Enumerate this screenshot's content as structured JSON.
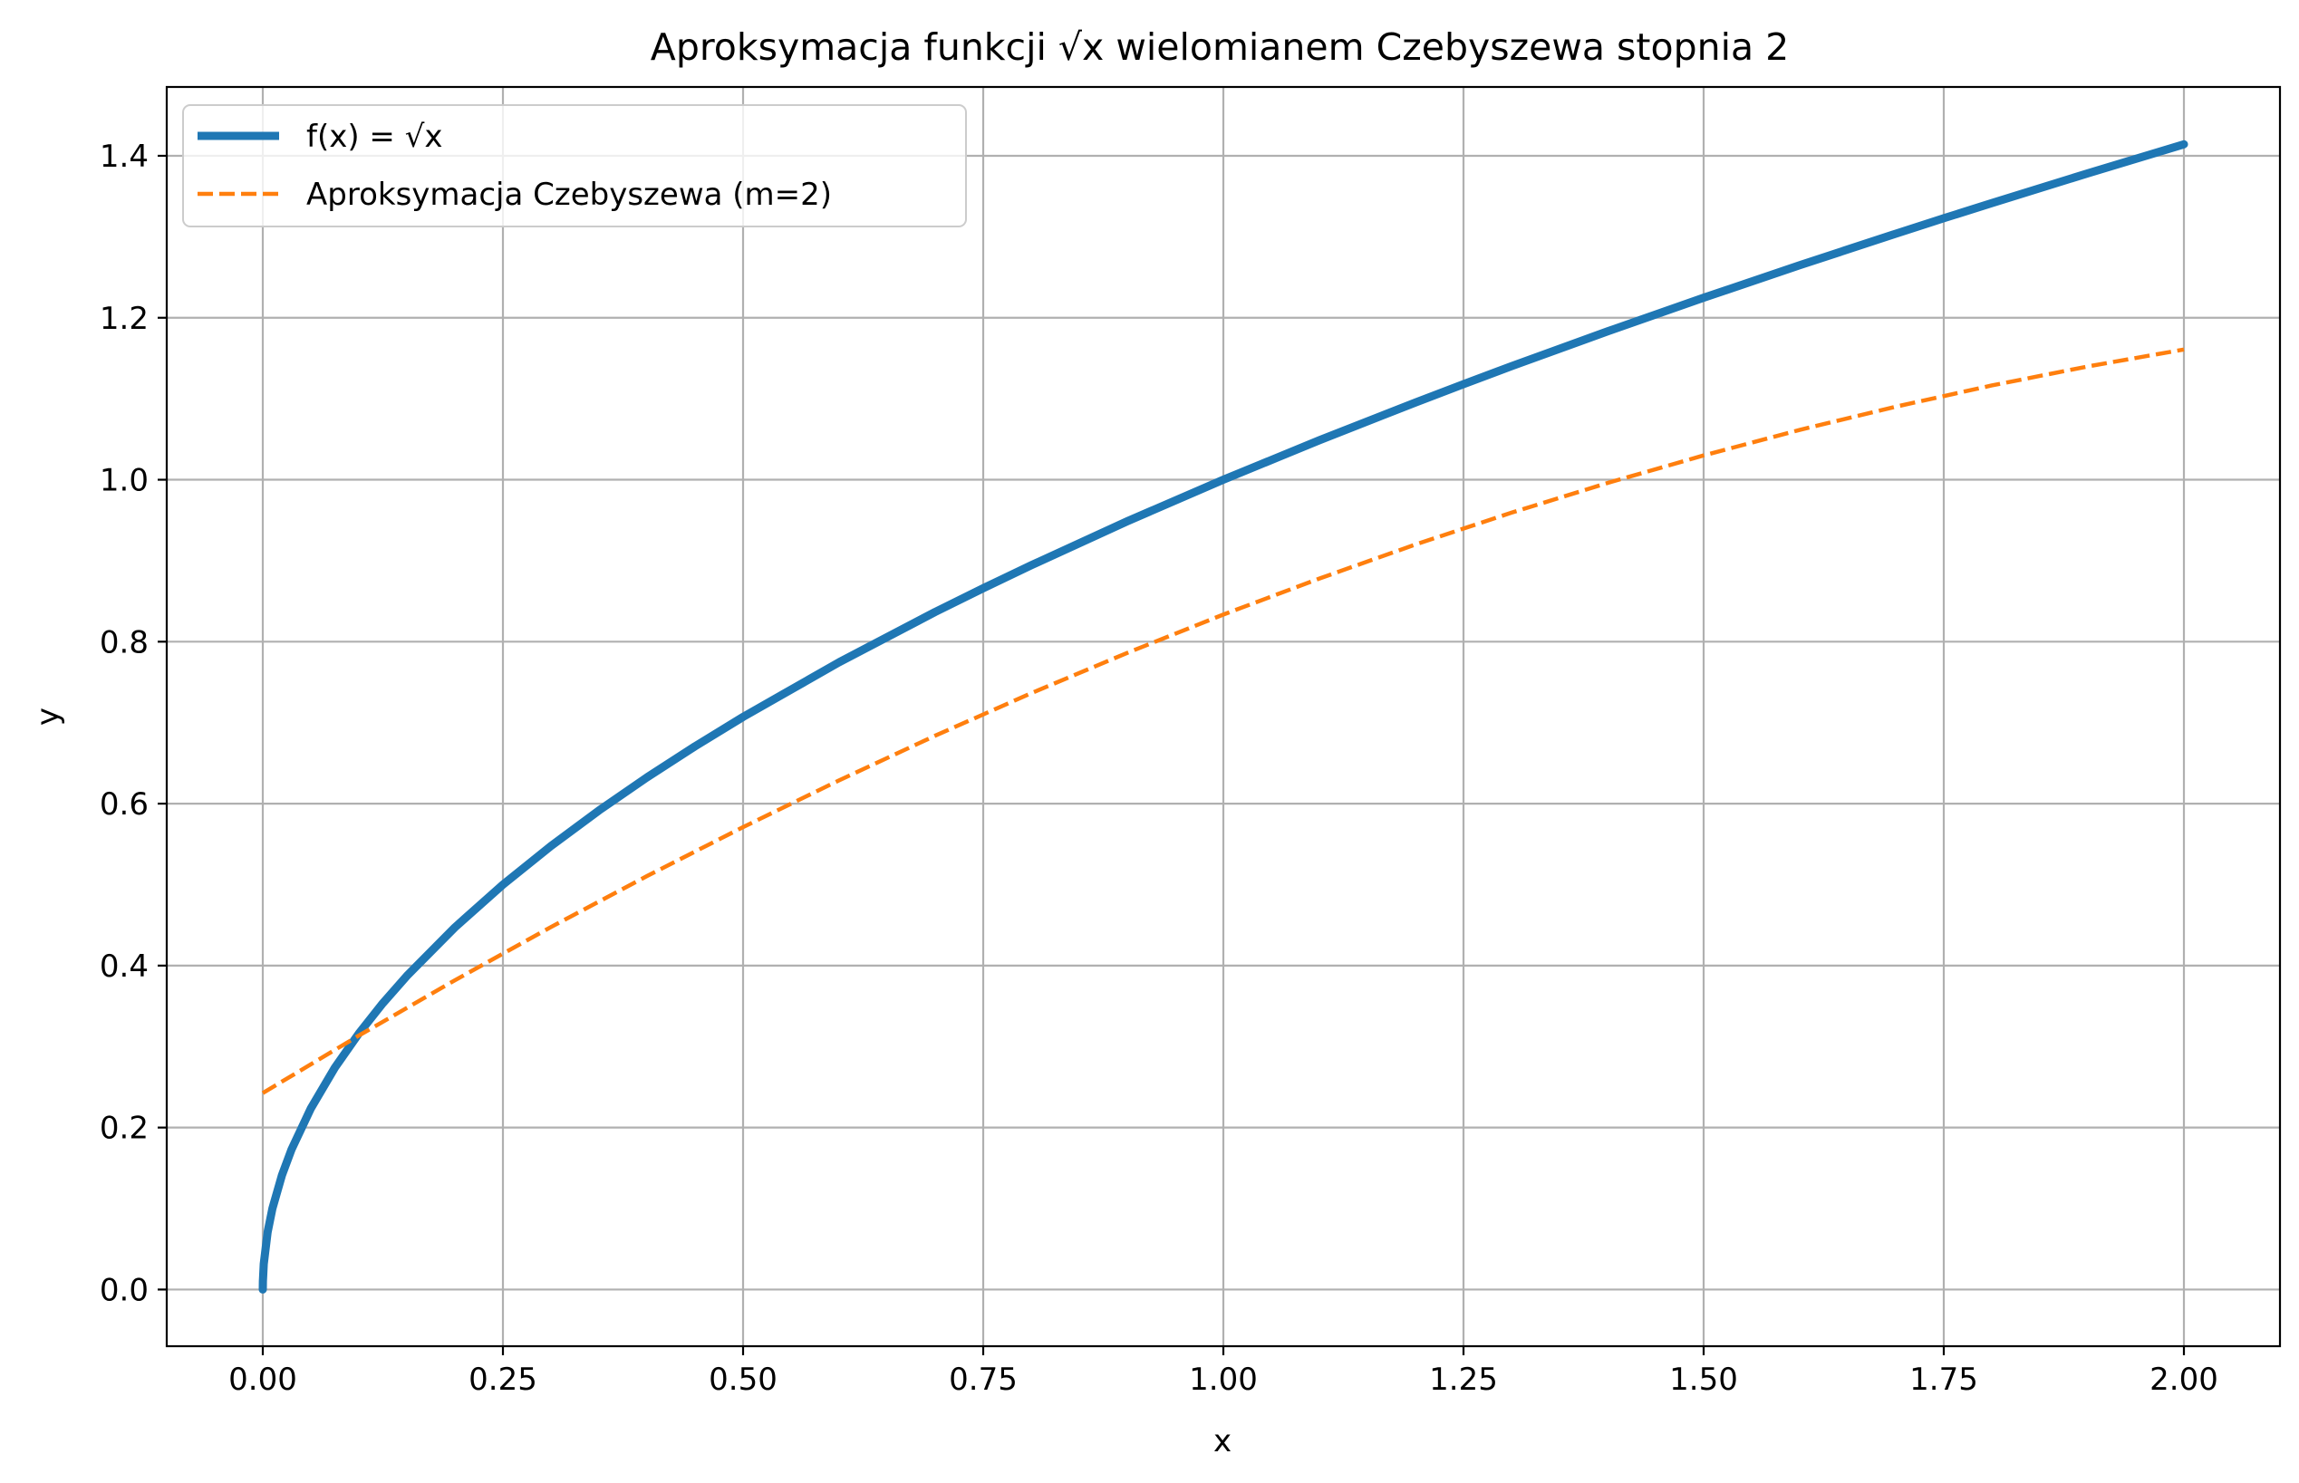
{
  "chart_data": {
    "type": "line",
    "title": "Aproksymacja funkcji √x wielomianem Czebyszewa stopnia 2",
    "xlabel": "x",
    "ylabel": "y",
    "xlim": [
      -0.1,
      2.1
    ],
    "ylim": [
      -0.07,
      1.485
    ],
    "x_ticks": [
      0.0,
      0.25,
      0.5,
      0.75,
      1.0,
      1.25,
      1.5,
      1.75,
      2.0
    ],
    "x_tick_labels": [
      "0.00",
      "0.25",
      "0.50",
      "0.75",
      "1.00",
      "1.25",
      "1.50",
      "1.75",
      "2.00"
    ],
    "y_ticks": [
      0.0,
      0.2,
      0.4,
      0.6,
      0.8,
      1.0,
      1.2,
      1.4
    ],
    "y_tick_labels": [
      "0.0",
      "0.2",
      "0.4",
      "0.6",
      "0.8",
      "1.0",
      "1.2",
      "1.4"
    ],
    "grid": true,
    "legend_position": "top-left",
    "series": [
      {
        "name": "f(x) = √x",
        "color": "#1f77b4",
        "style": "solid",
        "x": [
          0.0,
          0.0001,
          0.001,
          0.005,
          0.01,
          0.02,
          0.03,
          0.05,
          0.075,
          0.1,
          0.125,
          0.15,
          0.2,
          0.25,
          0.3,
          0.35,
          0.4,
          0.45,
          0.5,
          0.6,
          0.7,
          0.75,
          0.8,
          0.9,
          1.0,
          1.1,
          1.2,
          1.25,
          1.3,
          1.4,
          1.5,
          1.6,
          1.7,
          1.75,
          1.8,
          1.9,
          2.0
        ],
        "y": [
          0.0,
          0.01,
          0.0316,
          0.0707,
          0.1,
          0.1414,
          0.1732,
          0.2236,
          0.2739,
          0.3162,
          0.3536,
          0.3873,
          0.4472,
          0.5,
          0.5477,
          0.5916,
          0.6325,
          0.6708,
          0.7071,
          0.7746,
          0.8367,
          0.866,
          0.8944,
          0.9487,
          1.0,
          1.0488,
          1.0954,
          1.118,
          1.1402,
          1.1832,
          1.2247,
          1.2649,
          1.3038,
          1.3229,
          1.3416,
          1.3784,
          1.4142
        ]
      },
      {
        "name": "Aproksymacja Czebyszewa (m=2)",
        "color": "#ff7f0e",
        "style": "dashed",
        "x": [
          0.0,
          0.1,
          0.2,
          0.3,
          0.4,
          0.5,
          0.6,
          0.7,
          0.8,
          0.9,
          1.0,
          1.1,
          1.2,
          1.3,
          1.4,
          1.5,
          1.6,
          1.7,
          1.8,
          1.9,
          2.0
        ],
        "y": [
          0.2426,
          0.3136,
          0.3819,
          0.4476,
          0.5106,
          0.571,
          0.6288,
          0.6839,
          0.7364,
          0.7862,
          0.8335,
          0.878,
          0.92,
          0.9593,
          0.996,
          1.03,
          1.0615,
          1.0902,
          1.1164,
          1.1399,
          1.1608
        ]
      }
    ]
  }
}
